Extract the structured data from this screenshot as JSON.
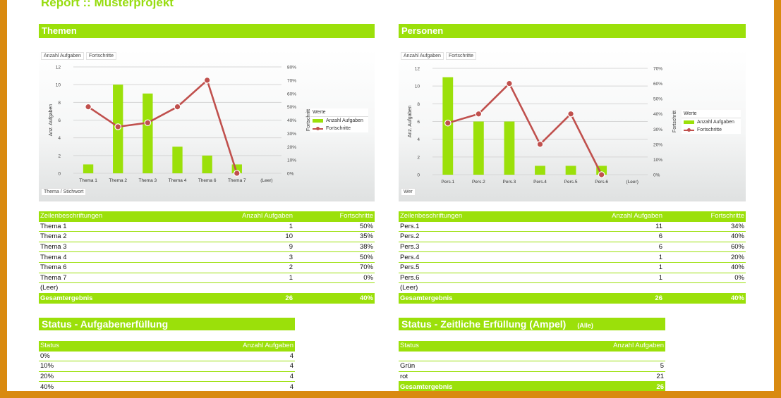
{
  "report_title": "Report :: Musterprojekt",
  "themen": {
    "header": "Themen",
    "chip_fields": [
      "Anzahl Aufgaben",
      "Fortschritte"
    ],
    "row_field": "Thema / Stichwort",
    "legend_title": "Werte",
    "legend_bar": "Anzahl Aufgaben",
    "legend_line": "Fortschritte",
    "table_header": [
      "Zeilenbeschriftungen",
      "Anzahl Aufgaben",
      "Fortschritte"
    ],
    "rows": [
      [
        "Thema 1",
        "1",
        "50%"
      ],
      [
        "Thema 2",
        "10",
        "35%"
      ],
      [
        "Thema 3",
        "9",
        "38%"
      ],
      [
        "Thema 4",
        "3",
        "50%"
      ],
      [
        "Thema 6",
        "2",
        "70%"
      ],
      [
        "Thema 7",
        "1",
        "0%"
      ],
      [
        "(Leer)",
        "",
        ""
      ]
    ],
    "total": [
      "Gesamtergebnis",
      "26",
      "40%"
    ]
  },
  "personen": {
    "header": "Personen",
    "chip_fields": [
      "Anzahl Aufgaben",
      "Fortschritte"
    ],
    "row_field": "Wer",
    "legend_title": "Werte",
    "legend_bar": "Anzahl Aufgaben",
    "legend_line": "Fortschritte",
    "table_header": [
      "Zeilenbeschriftungen",
      "Anzahl Aufgaben",
      "Fortschritte"
    ],
    "rows": [
      [
        "Pers.1",
        "11",
        "34%"
      ],
      [
        "Pers.2",
        "6",
        "40%"
      ],
      [
        "Pers.3",
        "6",
        "60%"
      ],
      [
        "Pers.4",
        "1",
        "20%"
      ],
      [
        "Pers.5",
        "1",
        "40%"
      ],
      [
        "Pers.6",
        "1",
        "0%"
      ],
      [
        "(Leer)",
        "",
        ""
      ]
    ],
    "total": [
      "Gesamtergebnis",
      "26",
      "40%"
    ]
  },
  "status_aufgaben": {
    "header": "Status - Aufgabenerfüllung",
    "table_header": [
      "Status",
      "Anzahl Aufgaben"
    ],
    "rows": [
      [
        "0%",
        "4"
      ],
      [
        "10%",
        "4"
      ],
      [
        "20%",
        "4"
      ],
      [
        "40%",
        "4"
      ]
    ]
  },
  "status_ampel": {
    "header": "Status - Zeitliche Erfüllung (Ampel)",
    "filter": "(Alle)",
    "table_header": [
      "Status",
      "Anzahl Aufgaben"
    ],
    "rows": [
      [
        "",
        ""
      ],
      [
        "Grün",
        "5"
      ],
      [
        "rot",
        "21"
      ]
    ],
    "total": [
      "Gesamtergebnis",
      "26"
    ]
  },
  "colors": {
    "bar": "#9be00a",
    "line": "#c0504d",
    "frame": "#d98a10"
  },
  "chart_data": [
    {
      "type": "bar",
      "categories": [
        "Thema 1",
        "Thema 2",
        "Thema 3",
        "Thema 4",
        "Thema 6",
        "Thema 7",
        "(Leer)"
      ],
      "series": [
        {
          "name": "Anzahl Aufgaben",
          "type": "bar",
          "axis": "left",
          "values": [
            1,
            10,
            9,
            3,
            2,
            1,
            null
          ]
        },
        {
          "name": "Fortschritte",
          "type": "line",
          "axis": "right",
          "values": [
            0.5,
            0.35,
            0.38,
            0.5,
            0.7,
            0.0,
            null
          ]
        }
      ],
      "ylabel": "Anz. Aufgaben",
      "y2label": "Fortschritt",
      "ylim": [
        0,
        12
      ],
      "yticks": [
        "0",
        "2",
        "4",
        "6",
        "8",
        "10",
        "12"
      ],
      "y2lim": [
        0,
        0.8
      ],
      "y2ticks": [
        "0%",
        "10%",
        "20%",
        "30%",
        "40%",
        "50%",
        "60%",
        "70%",
        "80%"
      ],
      "grid": true,
      "legend": "right"
    },
    {
      "type": "bar",
      "categories": [
        "Pers.1",
        "Pers.2",
        "Pers.3",
        "Pers.4",
        "Pers.5",
        "Pers.6",
        "(Leer)"
      ],
      "series": [
        {
          "name": "Anzahl Aufgaben",
          "type": "bar",
          "axis": "left",
          "values": [
            11,
            6,
            6,
            1,
            1,
            1,
            null
          ]
        },
        {
          "name": "Fortschritte",
          "type": "line",
          "axis": "right",
          "values": [
            0.34,
            0.4,
            0.6,
            0.2,
            0.4,
            0.0,
            null
          ]
        }
      ],
      "ylabel": "Anz. Aufgaben",
      "y2label": "Fortschritt",
      "ylim": [
        0,
        12
      ],
      "yticks": [
        "0",
        "2",
        "4",
        "6",
        "8",
        "10",
        "12"
      ],
      "y2lim": [
        0,
        0.7
      ],
      "y2ticks": [
        "0%",
        "10%",
        "20%",
        "30%",
        "40%",
        "50%",
        "60%",
        "70%"
      ],
      "grid": true,
      "legend": "right"
    }
  ]
}
